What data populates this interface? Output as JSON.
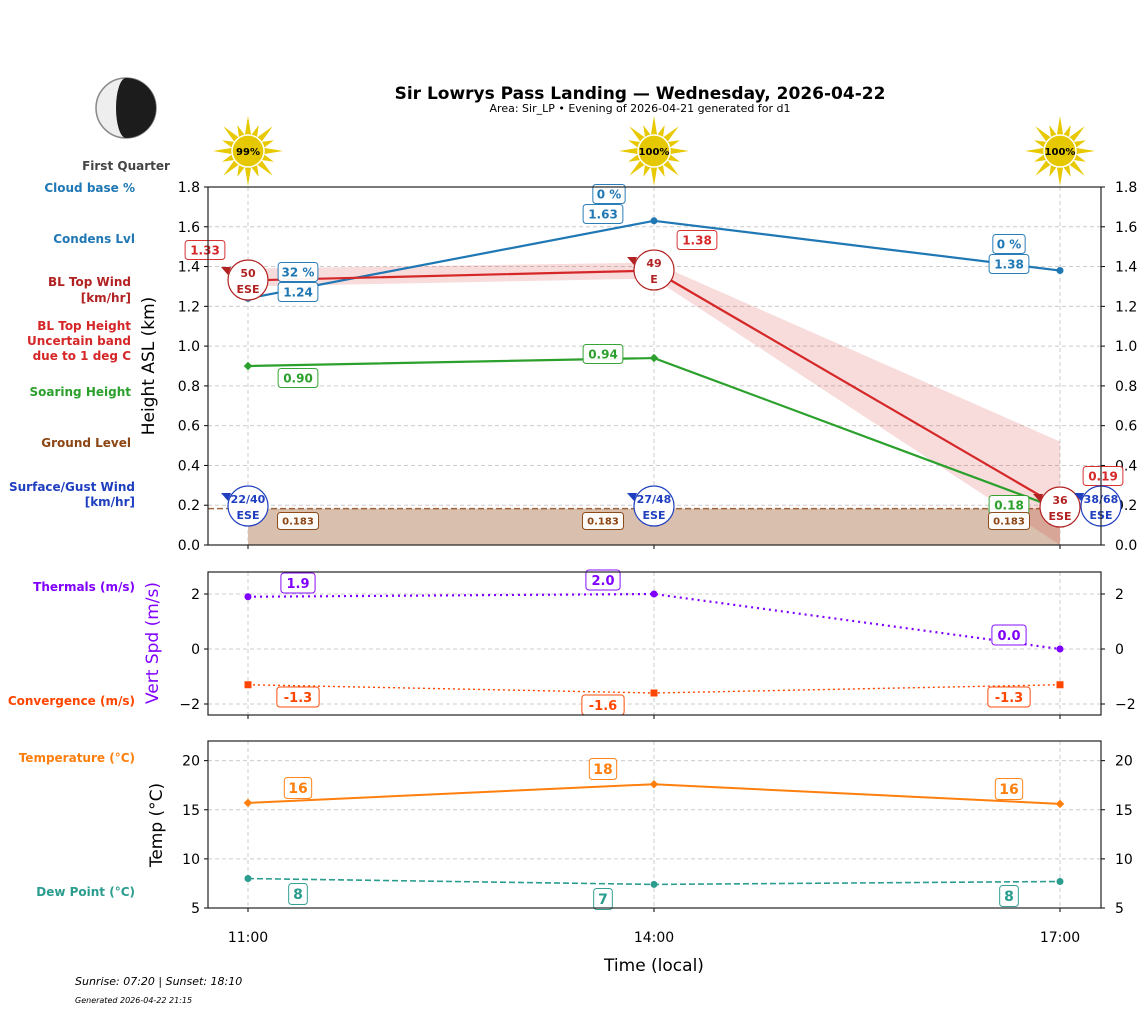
{
  "title": "Sir Lowrys Pass Landing — Wednesday, 2026-04-22",
  "subtitle": "Area: Sir_LP • Evening of 2026-04-21 generated for d1",
  "moon_phase": "First Quarter",
  "footer": {
    "sun_times": "Sunrise: 07:20 | Sunset: 18:10",
    "generated": "Generated 2026-04-22 21:15"
  },
  "left_labels": {
    "cloud_base": "Cloud base %",
    "condens": "Condens Lvl",
    "bl_wind_1": "BL Top Wind",
    "bl_wind_2": "[km/hr]",
    "bl_height_1": "BL Top Height",
    "bl_height_2": "Uncertain band",
    "bl_height_3": "due to 1 deg C",
    "soaring": "Soaring Height",
    "ground": "Ground Level",
    "surface_1": "Surface/Gust Wind",
    "surface_2": "[km/hr]",
    "thermals": "Thermals (m/s)",
    "convergence": "Convergence (m/s)",
    "temperature": "Temperature (°C)",
    "dew": "Dew Point (°C)"
  },
  "colors": {
    "condens": "#1f77b4",
    "bl_top": "#d62728",
    "bl_wind": "#b22222",
    "soaring": "#2ca02c",
    "ground": "#8b4513",
    "surface": "#1f3fbf",
    "thermals": "#8000ff",
    "convergence": "#ff4500",
    "temperature": "#ff7f0e",
    "dew": "#2a9d8f",
    "sun": "#e8c800"
  },
  "chart_data": [
    {
      "type": "line",
      "ylabel": "Height ASL (km)",
      "ylim": [
        0,
        1.8
      ],
      "yticks": [
        "0.0",
        "0.2",
        "0.4",
        "0.6",
        "0.8",
        "1.0",
        "1.2",
        "1.4",
        "1.6",
        "1.8"
      ],
      "grid": true,
      "categories": [
        "11:00",
        "14:00",
        "17:00"
      ],
      "sun_percent": [
        "99%",
        "100%",
        "100%"
      ],
      "series": [
        {
          "key": "condens",
          "values": [
            1.24,
            1.63,
            1.38
          ],
          "labels": [
            "1.24",
            "1.63",
            "1.38"
          ],
          "cloud_pct": [
            "32 %",
            "0 %",
            "0 %"
          ]
        },
        {
          "key": "bl_top",
          "values": [
            1.33,
            1.38,
            0.19
          ],
          "labels": [
            "1.33",
            "1.38",
            "0.19"
          ],
          "band_low": [
            1.3,
            1.34,
            0.0
          ],
          "band_high": [
            1.39,
            1.42,
            0.52
          ]
        },
        {
          "key": "soaring",
          "values": [
            0.9,
            0.94,
            0.18
          ],
          "labels": [
            "0.90",
            "0.94",
            "0.18"
          ]
        },
        {
          "key": "ground",
          "values": [
            0.183,
            0.183,
            0.183
          ],
          "labels": [
            "0.183",
            "0.183",
            "0.183"
          ]
        }
      ],
      "bl_wind": [
        {
          "speed": "50",
          "dir": "ESE"
        },
        {
          "speed": "49",
          "dir": "E"
        },
        {
          "speed": "36",
          "dir": "ESE"
        }
      ],
      "surface_wind": [
        {
          "speed": "22/40",
          "dir": "ESE"
        },
        {
          "speed": "27/48",
          "dir": "ESE"
        },
        {
          "speed": "38/68",
          "dir": "ESE"
        }
      ]
    },
    {
      "type": "line",
      "ylabel": "Vert Spd (m/s)",
      "ylim": [
        -2.4,
        2.8
      ],
      "yticks": [
        "−2",
        "0",
        "2"
      ],
      "grid": true,
      "categories": [
        "11:00",
        "14:00",
        "17:00"
      ],
      "series": [
        {
          "key": "thermals",
          "values": [
            1.9,
            2.0,
            0.0
          ],
          "labels": [
            "1.9",
            "2.0",
            "0.0"
          ]
        },
        {
          "key": "convergence",
          "values": [
            -1.3,
            -1.6,
            -1.3
          ],
          "labels": [
            "-1.3",
            "-1.6",
            "-1.3"
          ]
        }
      ]
    },
    {
      "type": "line",
      "ylabel": "Temp (°C)",
      "xlabel": "Time (local)",
      "ylim": [
        5,
        22
      ],
      "yticks": [
        "5",
        "10",
        "15",
        "20"
      ],
      "grid": true,
      "categories": [
        "11:00",
        "14:00",
        "17:00"
      ],
      "series": [
        {
          "key": "temperature",
          "values": [
            15.7,
            17.6,
            15.6
          ],
          "labels": [
            "16",
            "18",
            "16"
          ]
        },
        {
          "key": "dew",
          "values": [
            8.0,
            7.4,
            7.7
          ],
          "labels": [
            "8",
            "7",
            "8"
          ]
        }
      ]
    }
  ]
}
